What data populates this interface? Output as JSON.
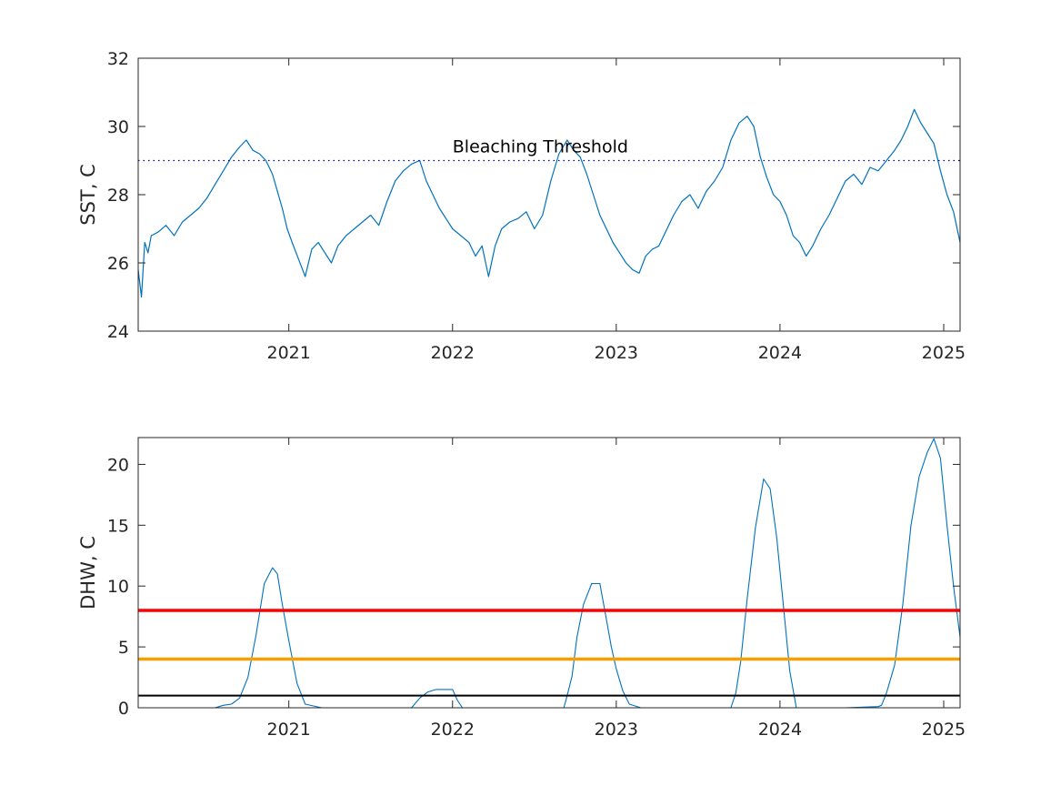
{
  "chart_data": [
    {
      "type": "line",
      "ylabel": "SST, C",
      "xlim": [
        2020.08,
        2025.1
      ],
      "ylim": [
        24,
        32
      ],
      "yticks": [
        24,
        26,
        28,
        30,
        32
      ],
      "xticks": [
        2021,
        2022,
        2023,
        2024,
        2025
      ],
      "xtick_labels": [
        "2021",
        "2022",
        "2023",
        "2024",
        "2025"
      ],
      "grid": false,
      "series": [
        {
          "color": "#0072BD",
          "x": [
            2020.08,
            2020.1,
            2020.12,
            2020.14,
            2020.16,
            2020.2,
            2020.25,
            2020.3,
            2020.35,
            2020.4,
            2020.45,
            2020.5,
            2020.55,
            2020.6,
            2020.65,
            2020.7,
            2020.74,
            2020.78,
            2020.82,
            2020.86,
            2020.9,
            2020.93,
            2020.96,
            2020.99,
            2021.02,
            2021.06,
            2021.1,
            2021.14,
            2021.18,
            2021.22,
            2021.26,
            2021.3,
            2021.35,
            2021.4,
            2021.45,
            2021.5,
            2021.55,
            2021.6,
            2021.65,
            2021.7,
            2021.75,
            2021.8,
            2021.84,
            2021.88,
            2021.92,
            2021.96,
            2022.0,
            2022.05,
            2022.1,
            2022.14,
            2022.18,
            2022.22,
            2022.26,
            2022.3,
            2022.35,
            2022.4,
            2022.45,
            2022.5,
            2022.55,
            2022.6,
            2022.65,
            2022.7,
            2022.74,
            2022.78,
            2022.82,
            2022.86,
            2022.9,
            2022.94,
            2022.98,
            2023.02,
            2023.06,
            2023.1,
            2023.14,
            2023.18,
            2023.22,
            2023.26,
            2023.3,
            2023.35,
            2023.4,
            2023.45,
            2023.5,
            2023.55,
            2023.6,
            2023.65,
            2023.7,
            2023.75,
            2023.8,
            2023.84,
            2023.88,
            2023.92,
            2023.96,
            2024.0,
            2024.04,
            2024.08,
            2024.12,
            2024.16,
            2024.2,
            2024.25,
            2024.3,
            2024.35,
            2024.4,
            2024.45,
            2024.5,
            2024.55,
            2024.6,
            2024.65,
            2024.7,
            2024.74,
            2024.78,
            2024.82,
            2024.86,
            2024.9,
            2024.94,
            2024.98,
            2025.02,
            2025.06,
            2025.1
          ],
          "y": [
            25.8,
            25.0,
            26.6,
            26.3,
            26.8,
            26.9,
            27.1,
            26.8,
            27.2,
            27.4,
            27.6,
            27.9,
            28.3,
            28.7,
            29.1,
            29.4,
            29.6,
            29.3,
            29.2,
            29.0,
            28.6,
            28.1,
            27.6,
            27.0,
            26.6,
            26.1,
            25.6,
            26.4,
            26.6,
            26.3,
            26.0,
            26.5,
            26.8,
            27.0,
            27.2,
            27.4,
            27.1,
            27.8,
            28.4,
            28.7,
            28.9,
            29.0,
            28.4,
            28.0,
            27.6,
            27.3,
            27.0,
            26.8,
            26.6,
            26.2,
            26.5,
            25.6,
            26.5,
            27.0,
            27.2,
            27.3,
            27.5,
            27.0,
            27.4,
            28.4,
            29.2,
            29.6,
            29.3,
            29.1,
            28.6,
            28.0,
            27.4,
            27.0,
            26.6,
            26.3,
            26.0,
            25.8,
            25.7,
            26.2,
            26.4,
            26.5,
            26.9,
            27.4,
            27.8,
            28.0,
            27.6,
            28.1,
            28.4,
            28.8,
            29.6,
            30.1,
            30.3,
            30.0,
            29.1,
            28.5,
            28.0,
            27.8,
            27.4,
            26.8,
            26.6,
            26.2,
            26.5,
            27.0,
            27.4,
            27.9,
            28.4,
            28.6,
            28.3,
            28.8,
            28.7,
            29.0,
            29.3,
            29.6,
            30.0,
            30.5,
            30.1,
            29.8,
            29.5,
            28.7,
            28.0,
            27.5,
            26.6
          ]
        },
        {
          "name": "Bleaching Threshold",
          "color": "#0000A0",
          "style": "dotted",
          "x": [
            2020.08,
            2025.1
          ],
          "y": [
            29.0,
            29.0
          ]
        }
      ],
      "annotations": [
        {
          "text": "Bleaching Threshold",
          "x": 2022.0,
          "y": 29.3
        }
      ]
    },
    {
      "type": "line",
      "ylabel": "DHW, C",
      "xlim": [
        2020.08,
        2025.1
      ],
      "ylim": [
        0,
        22.2
      ],
      "yticks": [
        0,
        5,
        10,
        15,
        20
      ],
      "xticks": [
        2021,
        2022,
        2023,
        2024,
        2025
      ],
      "xtick_labels": [
        "2021",
        "2022",
        "2023",
        "2024",
        "2025"
      ],
      "grid": false,
      "series": [
        {
          "color": "#0072BD",
          "x": [
            2020.08,
            2020.2,
            2020.4,
            2020.5,
            2020.55,
            2020.6,
            2020.65,
            2020.7,
            2020.75,
            2020.8,
            2020.85,
            2020.9,
            2020.93,
            2020.96,
            2021.0,
            2021.05,
            2021.1,
            2021.2,
            2021.4,
            2021.6,
            2021.75,
            2021.8,
            2021.85,
            2021.9,
            2022.0,
            2022.03,
            2022.06,
            2022.1,
            2022.3,
            2022.5,
            2022.6,
            2022.68,
            2022.7,
            2022.73,
            2022.76,
            2022.8,
            2022.85,
            2022.9,
            2022.93,
            2022.97,
            2023.0,
            2023.04,
            2023.08,
            2023.15,
            2023.3,
            2023.5,
            2023.65,
            2023.7,
            2023.73,
            2023.76,
            2023.8,
            2023.85,
            2023.9,
            2023.94,
            2023.98,
            2024.02,
            2024.06,
            2024.1,
            2024.2,
            2024.4,
            2024.6,
            2024.62,
            2024.65,
            2024.7,
            2024.75,
            2024.8,
            2024.85,
            2024.9,
            2024.94,
            2024.98,
            2025.02,
            2025.06,
            2025.1
          ],
          "y": [
            0,
            0,
            0,
            0,
            0,
            0.2,
            0.3,
            0.8,
            2.5,
            6.0,
            10.2,
            11.5,
            11.0,
            8.5,
            5.5,
            2.0,
            0.3,
            0,
            0,
            0,
            0,
            0.8,
            1.3,
            1.5,
            1.5,
            0.6,
            0,
            0,
            0,
            0,
            0,
            0,
            1.0,
            2.6,
            5.8,
            8.5,
            10.2,
            10.2,
            8.0,
            5.0,
            3.2,
            1.4,
            0.3,
            0,
            0,
            0,
            0,
            0,
            1.2,
            3.8,
            9.0,
            14.8,
            18.8,
            18.0,
            14.0,
            8.5,
            3.0,
            0,
            0,
            0,
            0.1,
            0.2,
            1.2,
            3.5,
            8.5,
            15.0,
            19.0,
            21.0,
            22.1,
            20.5,
            15.0,
            10.0,
            5.8
          ]
        },
        {
          "color": "#FF0000",
          "x": [
            2020.08,
            2025.1
          ],
          "y": [
            8,
            8
          ]
        },
        {
          "color": "#F5A000",
          "x": [
            2020.08,
            2025.1
          ],
          "y": [
            4,
            4
          ]
        },
        {
          "color": "#000000",
          "x": [
            2020.08,
            2025.1
          ],
          "y": [
            1,
            1
          ]
        }
      ]
    }
  ]
}
